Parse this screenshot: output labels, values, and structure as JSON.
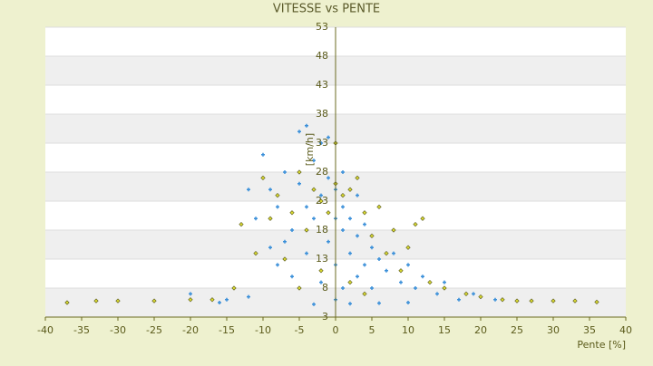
{
  "chart_data": {
    "type": "scatter",
    "title": "VITESSE vs PENTE",
    "x_label": "Pente [%]",
    "y_label": "[km/h]",
    "xlim": [
      -40,
      40
    ],
    "xticks": [
      -40,
      -35,
      -30,
      -25,
      -20,
      -15,
      -10,
      -5,
      0,
      5,
      10,
      15,
      20,
      25,
      30,
      35,
      40
    ],
    "ylim": [
      3,
      53
    ],
    "yticks": [
      3,
      8,
      13,
      18,
      23,
      28,
      33,
      38,
      43,
      48,
      53
    ],
    "grid": true,
    "series": [
      {
        "color": "#3a8fd9",
        "x": [
          -37,
          -20,
          -15,
          -12,
          -12,
          -11,
          -10,
          -9,
          -8,
          -8,
          -7,
          -6,
          -6,
          -5,
          -5,
          -4,
          -4,
          -3,
          -3,
          -2,
          -2,
          -1,
          -1,
          0,
          0,
          0,
          1,
          1,
          1,
          2,
          2,
          3,
          3,
          4,
          4,
          5,
          5,
          6,
          7,
          8,
          9,
          10,
          11,
          12,
          14,
          15,
          17,
          19,
          22,
          -16,
          -3,
          2,
          6,
          10,
          -7,
          -9,
          -4,
          3,
          0,
          1,
          -1,
          -2
        ],
        "values": [
          5.5,
          7,
          6,
          6.5,
          25,
          20,
          31,
          15,
          12,
          22,
          28,
          18,
          10,
          35,
          26,
          36,
          14,
          30,
          20,
          24,
          9,
          27,
          16,
          25,
          12,
          6,
          22,
          18,
          8,
          20,
          14,
          17,
          10,
          19,
          12,
          15,
          8,
          13,
          11,
          14,
          9,
          12,
          8,
          10,
          7,
          9,
          6,
          7,
          6,
          5.5,
          5.2,
          5.3,
          5.4,
          5.5,
          16,
          25,
          22,
          24,
          20,
          28,
          34,
          33
        ]
      },
      {
        "color": "#d8d830",
        "x": [
          -37,
          -33,
          -30,
          -25,
          -20,
          -17,
          -14,
          -13,
          -11,
          -10,
          -9,
          -8,
          -7,
          -6,
          -5,
          -4,
          -3,
          -2,
          -1,
          0,
          0,
          1,
          2,
          3,
          4,
          5,
          6,
          7,
          8,
          9,
          10,
          11,
          12,
          13,
          15,
          18,
          20,
          23,
          25,
          27,
          30,
          33,
          36,
          -2,
          2,
          4,
          -5
        ],
        "values": [
          5.5,
          5.8,
          5.8,
          5.8,
          6,
          6,
          8,
          19,
          14,
          27,
          20,
          24,
          13,
          21,
          28,
          18,
          25,
          23,
          21,
          26,
          33,
          24,
          25,
          27,
          21,
          17,
          22,
          14,
          18,
          11,
          15,
          19,
          20,
          9,
          8,
          7,
          6.5,
          6,
          5.8,
          5.8,
          5.8,
          5.8,
          5.6,
          11,
          9,
          7,
          8
        ]
      }
    ]
  }
}
